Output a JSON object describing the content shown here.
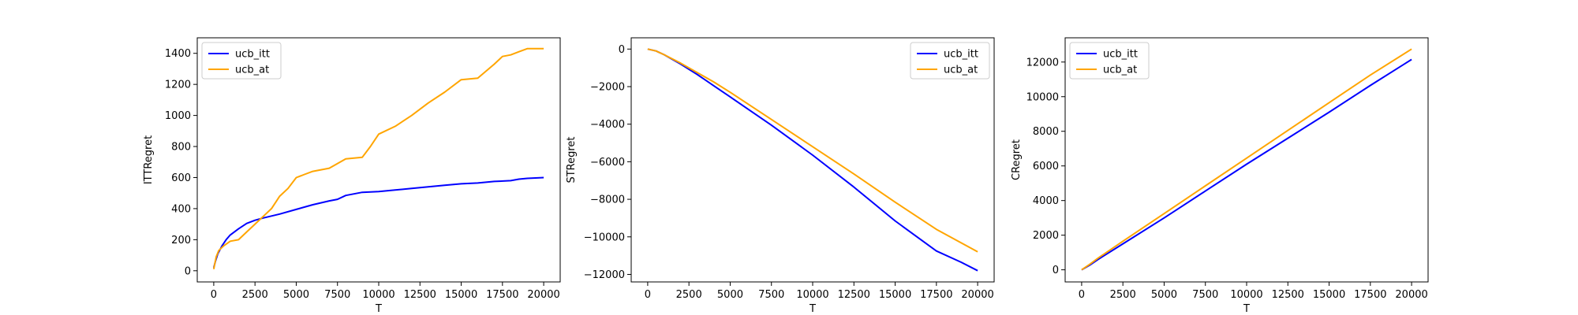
{
  "colors": {
    "ucb_itt": "#0000ff",
    "ucb_at": "#ffa500",
    "axes": "#000000",
    "background": "#ffffff"
  },
  "chart_data": [
    {
      "type": "line",
      "xlabel": "T",
      "ylabel": "ITTRegret",
      "xlim": [
        -1000,
        21000
      ],
      "ylim": [
        -72,
        1500
      ],
      "xticks": [
        0,
        2500,
        5000,
        7500,
        10000,
        12500,
        15000,
        17500,
        20000
      ],
      "yticks": [
        0,
        200,
        400,
        600,
        800,
        1000,
        1200,
        1400
      ],
      "grid": false,
      "legend": "top-left",
      "series": [
        {
          "name": "ucb_itt",
          "color": "#0000ff",
          "x": [
            0,
            100,
            250,
            500,
            750,
            1000,
            1500,
            2000,
            2500,
            3000,
            4000,
            5000,
            6000,
            7000,
            7500,
            8000,
            9000,
            10000,
            11000,
            12000,
            13000,
            14000,
            15000,
            16000,
            17000,
            18000,
            18500,
            19000,
            20000
          ],
          "y": [
            20,
            60,
            110,
            160,
            200,
            230,
            270,
            305,
            325,
            340,
            365,
            395,
            425,
            450,
            460,
            485,
            505,
            510,
            520,
            530,
            540,
            550,
            560,
            565,
            575,
            580,
            590,
            595,
            600
          ]
        },
        {
          "name": "ucb_at",
          "color": "#ffa500",
          "x": [
            0,
            150,
            300,
            600,
            1000,
            1500,
            2000,
            2500,
            3000,
            3500,
            4000,
            4500,
            5000,
            5500,
            6000,
            7000,
            8000,
            9000,
            9500,
            10000,
            11000,
            12000,
            13000,
            14000,
            15000,
            16000,
            17000,
            17500,
            18000,
            18500,
            19000,
            19500,
            20000
          ],
          "y": [
            10,
            90,
            130,
            160,
            190,
            200,
            250,
            300,
            350,
            400,
            480,
            530,
            600,
            620,
            640,
            660,
            720,
            730,
            800,
            880,
            930,
            1000,
            1080,
            1150,
            1230,
            1240,
            1330,
            1380,
            1390,
            1410,
            1430,
            1430,
            1430
          ]
        }
      ]
    },
    {
      "type": "line",
      "xlabel": "T",
      "ylabel": "STRegret",
      "xlim": [
        -1000,
        21000
      ],
      "ylim": [
        -12400,
        600
      ],
      "xticks": [
        0,
        2500,
        5000,
        7500,
        10000,
        12500,
        15000,
        17500,
        20000
      ],
      "yticks": [
        0,
        -2000,
        -4000,
        -6000,
        -8000,
        -10000,
        -12000
      ],
      "grid": false,
      "legend": "top-right",
      "series": [
        {
          "name": "ucb_itt",
          "color": "#0000ff",
          "x": [
            0,
            500,
            1000,
            2000,
            3000,
            4000,
            5000,
            7500,
            10000,
            12500,
            15000,
            17500,
            19000,
            20000
          ],
          "y": [
            0,
            -100,
            -300,
            -800,
            -1350,
            -1950,
            -2550,
            -4050,
            -5650,
            -7350,
            -9150,
            -10750,
            -11350,
            -11800
          ]
        },
        {
          "name": "ucb_at",
          "color": "#ffa500",
          "x": [
            0,
            500,
            1000,
            2000,
            3000,
            4000,
            5000,
            7500,
            10000,
            12500,
            15000,
            17500,
            20000
          ],
          "y": [
            0,
            -100,
            -300,
            -750,
            -1250,
            -1750,
            -2300,
            -3750,
            -5200,
            -6650,
            -8150,
            -9600,
            -10800
          ]
        }
      ]
    },
    {
      "type": "line",
      "xlabel": "T",
      "ylabel": "CRegret",
      "xlim": [
        -1000,
        21000
      ],
      "ylim": [
        -700,
        13400
      ],
      "xticks": [
        0,
        2500,
        5000,
        7500,
        10000,
        12500,
        15000,
        17500,
        20000
      ],
      "yticks": [
        0,
        2000,
        4000,
        6000,
        8000,
        10000,
        12000
      ],
      "grid": false,
      "legend": "top-left",
      "series": [
        {
          "name": "ucb_itt",
          "color": "#0000ff",
          "x": [
            0,
            500,
            1000,
            2500,
            5000,
            7500,
            10000,
            12500,
            15000,
            17500,
            20000
          ],
          "y": [
            0,
            280,
            600,
            1500,
            3000,
            4550,
            6100,
            7600,
            9100,
            10650,
            12150
          ]
        },
        {
          "name": "ucb_at",
          "color": "#ffa500",
          "x": [
            0,
            500,
            1000,
            2500,
            5000,
            7500,
            10000,
            12500,
            15000,
            17500,
            20000
          ],
          "y": [
            0,
            330,
            680,
            1650,
            3250,
            4850,
            6450,
            8050,
            9650,
            11250,
            12750
          ]
        }
      ]
    }
  ]
}
